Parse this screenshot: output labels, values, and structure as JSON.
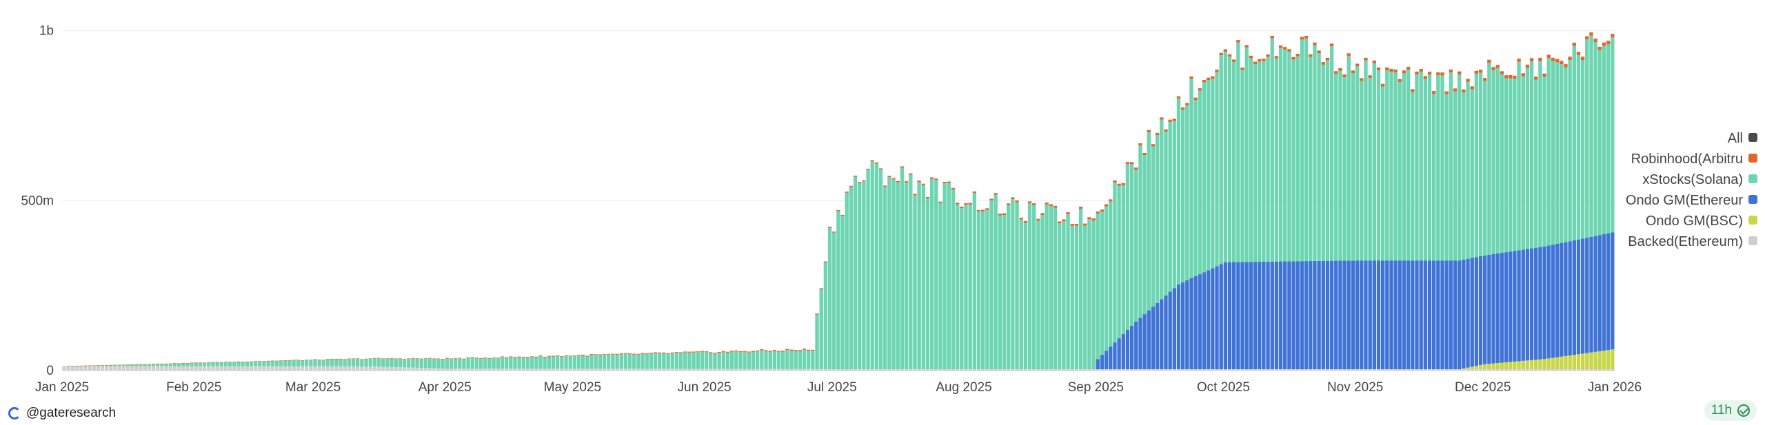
{
  "chart_data": {
    "type": "bar",
    "stacked": true,
    "ylabels": [
      "0",
      "500m",
      "1b"
    ],
    "y_ticks": [
      0,
      500000000,
      1000000000
    ],
    "ylim": [
      0,
      1050000000
    ],
    "x_tick_labels": [
      "Jan 2025",
      "Feb 2025",
      "Mar 2025",
      "Apr 2025",
      "May 2025",
      "Jun 2025",
      "Jul 2025",
      "Aug 2025",
      "Sep 2025",
      "Oct 2025",
      "Nov 2025",
      "Dec 2025",
      "Jan 2026"
    ],
    "grid": true,
    "legend_position": "right",
    "legend": [
      {
        "name": "All",
        "color": "#4a4a4a"
      },
      {
        "name": "Robinhood(Arbitru",
        "color": "#e0662e"
      },
      {
        "name": "xStocks(Solana)",
        "color": "#6dd5b1"
      },
      {
        "name": "Ondo GM(Ethereur",
        "color": "#3f73d6"
      },
      {
        "name": "Ondo GM(BSC)",
        "color": "#c9d64a"
      },
      {
        "name": "Backed(Ethereum)",
        "color": "#cfcfcf"
      }
    ],
    "series": [
      {
        "name": "Backed(Ethereum)",
        "color": "#cfcfcf",
        "x": [
          "2025-01-01",
          "2025-02-01",
          "2025-02-20",
          "2025-03-01",
          "2025-03-15",
          "2025-04-01",
          "2025-06-20",
          "2025-07-01",
          "2026-01-01"
        ],
        "values": [
          13000000,
          13000000,
          13000000,
          13000000,
          12000000,
          6000000,
          5000000,
          4000000,
          4000000
        ]
      },
      {
        "name": "Ondo GM(BSC)",
        "color": "#c9d64a",
        "x": [
          "2025-01-01",
          "2025-11-25",
          "2025-12-01",
          "2025-12-15",
          "2026-01-01"
        ],
        "values": [
          0,
          0,
          15000000,
          30000000,
          60000000
        ]
      },
      {
        "name": "Ondo GM(Ethereur",
        "color": "#3f73d6",
        "x": [
          "2025-01-01",
          "2025-08-31",
          "2025-09-01",
          "2025-09-10",
          "2025-09-20",
          "2025-10-01",
          "2025-11-01",
          "2025-12-01",
          "2026-01-01"
        ],
        "values": [
          0,
          0,
          30000000,
          140000000,
          250000000,
          315000000,
          320000000,
          320000000,
          345000000
        ]
      },
      {
        "name": "xStocks(Solana)",
        "color": "#6dd5b1",
        "x": [
          "2025-01-01",
          "2025-06-26",
          "2025-06-28",
          "2025-06-30",
          "2025-07-05",
          "2025-07-10",
          "2025-07-15",
          "2025-08-01",
          "2025-08-15",
          "2025-09-01",
          "2025-09-15",
          "2025-10-01",
          "2025-10-20",
          "2025-11-01",
          "2025-11-15",
          "2025-12-01",
          "2025-12-15",
          "2026-01-01"
        ],
        "values": [
          0,
          55000000,
          250000000,
          400000000,
          540000000,
          580000000,
          570000000,
          500000000,
          460000000,
          440000000,
          500000000,
          600000000,
          630000000,
          560000000,
          520000000,
          530000000,
          520000000,
          580000000
        ]
      },
      {
        "name": "Robinhood(Arbitru",
        "color": "#e0662e",
        "x": [
          "2025-01-01",
          "2025-07-01",
          "2025-09-01",
          "2026-01-01"
        ],
        "values": [
          0,
          3000000,
          6000000,
          10000000
        ]
      }
    ]
  },
  "footer": {
    "handle": "@gateresearch",
    "badge": "11h"
  }
}
